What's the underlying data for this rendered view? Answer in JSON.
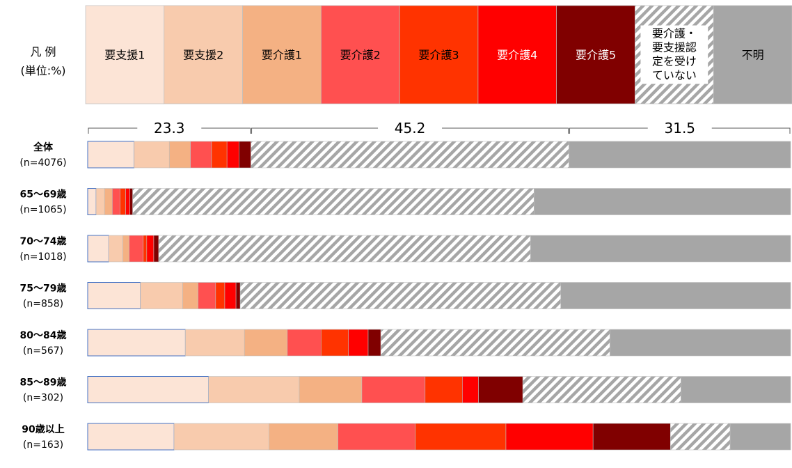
{
  "legend": {
    "title": "凡 例",
    "unit": "(単位:%)",
    "items": [
      {
        "key": "s1",
        "label": "要支援1",
        "color": "#FCE4D6",
        "text_color": "#000000"
      },
      {
        "key": "s2",
        "label": "要支援2",
        "color": "#F8CBAD",
        "text_color": "#000000"
      },
      {
        "key": "k1",
        "label": "要介護1",
        "color": "#F4B183",
        "text_color": "#000000"
      },
      {
        "key": "k2",
        "label": "要介護2",
        "color": "#FF5050",
        "text_color": "#000000"
      },
      {
        "key": "k3",
        "label": "要介護3",
        "color": "#FF3300",
        "text_color": "#000000"
      },
      {
        "key": "k4",
        "label": "要介護4",
        "color": "#FF0000",
        "text_color": "#FFFFFF"
      },
      {
        "key": "k5",
        "label": "要介護5",
        "color": "#800000",
        "text_color": "#FFFFFF"
      },
      {
        "key": "none",
        "label_lines": [
          "要介護・",
          "要支援認",
          "定を受け",
          "ていない"
        ],
        "color": "hatch",
        "text_color": "#000000"
      },
      {
        "key": "unknown",
        "label": "不明",
        "color": "#A6A6A6",
        "text_color": "#000000"
      }
    ]
  },
  "chart_data": {
    "type": "bar",
    "orientation": "horizontal",
    "stacked": "100%",
    "unit": "%",
    "series": [
      "要支援1",
      "要支援2",
      "要介護1",
      "要介護2",
      "要介護3",
      "要介護4",
      "要介護5",
      "要介護・要支援認定を受けていない",
      "不明"
    ],
    "brackets": [
      {
        "value": "23.3",
        "from_series": 0,
        "to_series": 6
      },
      {
        "value": "45.2",
        "from_series": 7,
        "to_series": 7
      },
      {
        "value": "31.5",
        "from_series": 8,
        "to_series": 8
      }
    ],
    "rows": [
      {
        "label": "全体",
        "n": "(n=4076)",
        "values": [
          6.6,
          5.0,
          3.0,
          3.0,
          2.2,
          1.7,
          1.7,
          45.2,
          31.5
        ]
      },
      {
        "label": "65〜69歳",
        "n": "(n=1065)",
        "values": [
          1.2,
          1.2,
          1.1,
          1.1,
          0.8,
          0.6,
          0.4,
          57.1,
          36.5
        ]
      },
      {
        "label": "70〜74歳",
        "n": "(n=1018)",
        "values": [
          3.0,
          2.0,
          0.9,
          2.0,
          0.5,
          1.0,
          0.7,
          52.9,
          37.0
        ]
      },
      {
        "label": "75〜79歳",
        "n": "(n=858)",
        "values": [
          7.5,
          6.0,
          2.2,
          2.5,
          1.3,
          1.6,
          0.6,
          45.6,
          32.7
        ]
      },
      {
        "label": "80〜84歳",
        "n": "(n=567)",
        "values": [
          13.9,
          8.4,
          6.1,
          4.8,
          3.9,
          2.8,
          1.8,
          32.6,
          25.7
        ]
      },
      {
        "label": "85〜89歳",
        "n": "(n=302)",
        "values": [
          17.2,
          12.9,
          8.9,
          9.0,
          5.3,
          2.3,
          6.3,
          22.5,
          15.6
        ]
      },
      {
        "label": "90歳以上",
        "n": "(n=163)",
        "values": [
          12.3,
          13.5,
          9.8,
          11.0,
          12.9,
          12.4,
          11.0,
          8.5,
          8.6
        ]
      }
    ]
  }
}
